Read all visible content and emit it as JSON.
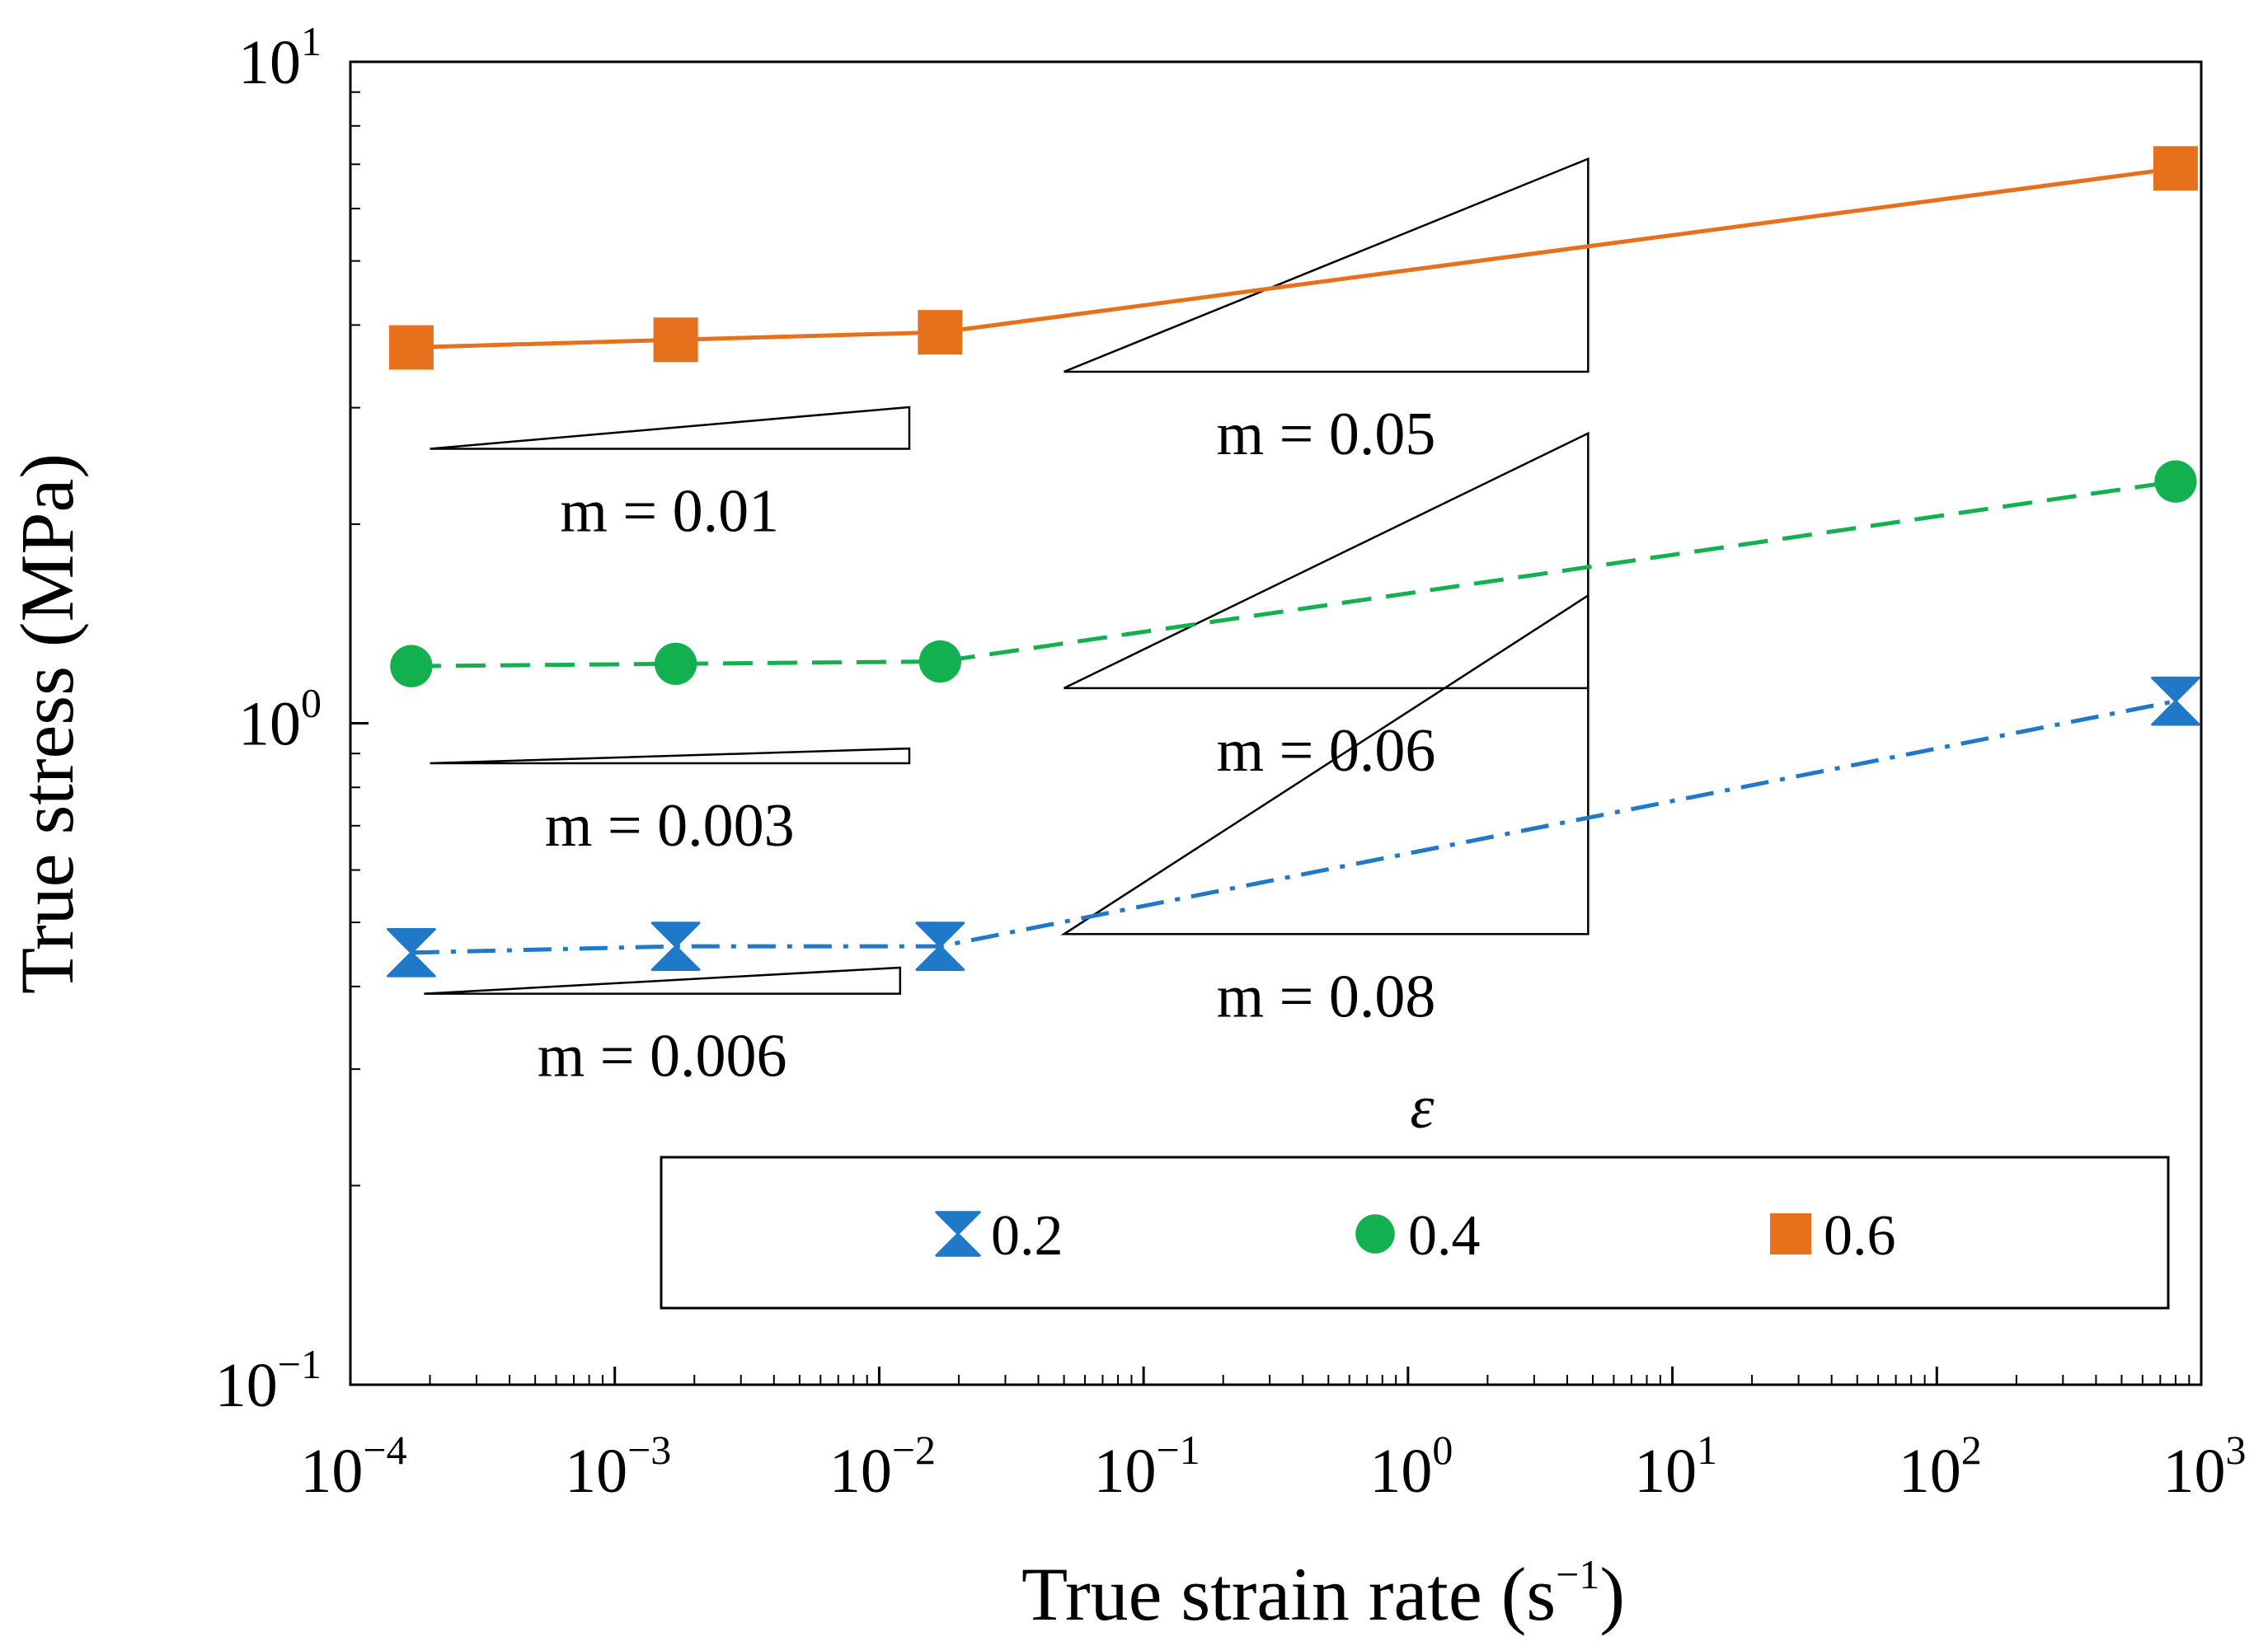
{
  "chart_data": {
    "type": "line",
    "xscale": "log",
    "yscale": "log",
    "xlabel": "True strain rate (s",
    "xlabel_sup": "−1",
    "xlabel_end": ")",
    "ylabel": "True stress (MPa)",
    "xlim": [
      0.0001,
      1000
    ],
    "ylim": [
      0.1,
      10
    ],
    "grid": false,
    "x_ticks": [
      {
        "base": "10",
        "exp": "−4"
      },
      {
        "base": "10",
        "exp": "−3"
      },
      {
        "base": "10",
        "exp": "−2"
      },
      {
        "base": "10",
        "exp": "−1"
      },
      {
        "base": "10",
        "exp": "0"
      },
      {
        "base": "10",
        "exp": "1"
      },
      {
        "base": "10",
        "exp": "2"
      },
      {
        "base": "10",
        "exp": "3"
      }
    ],
    "y_ticks": [
      {
        "base": "10",
        "exp": "−1"
      },
      {
        "base": "10",
        "exp": "0"
      },
      {
        "base": "10",
        "exp": "1"
      }
    ],
    "x": [
      0.00017,
      0.0017,
      0.017,
      800
    ],
    "series": [
      {
        "name": "0.2",
        "values": [
          0.45,
          0.46,
          0.46,
          1.08
        ],
        "color": "#1f78c8",
        "marker": "hourglass",
        "dash": "dashdot"
      },
      {
        "name": "0.4",
        "values": [
          1.22,
          1.23,
          1.24,
          2.32
        ],
        "color": "#13b050",
        "marker": "circle",
        "dash": "dashed"
      },
      {
        "name": "0.6",
        "values": [
          3.7,
          3.8,
          3.9,
          6.9
        ],
        "color": "#e6701c",
        "marker": "square",
        "dash": "solid"
      }
    ],
    "legend": {
      "title": "ε",
      "placement": "bottom-right"
    },
    "annotations": [
      {
        "text": "m = 0.01",
        "x0": 0.0002,
        "x1": 0.013,
        "y0": 2.6,
        "slope": 0.01
      },
      {
        "text": "m = 0.05",
        "x0": 0.05,
        "x1": 4.8,
        "y0": 3.4,
        "slope": 0.05
      },
      {
        "text": "m = 0.003",
        "x0": 0.0002,
        "x1": 0.013,
        "y0": 0.87,
        "slope": 0.003
      },
      {
        "text": "m = 0.06",
        "x0": 0.05,
        "x1": 4.8,
        "y0": 1.13,
        "slope": 0.06
      },
      {
        "text": "m = 0.006",
        "x0": 0.00019,
        "x1": 0.012,
        "y0": 0.39,
        "slope": 0.006
      },
      {
        "text": "m = 0.08",
        "x0": 0.05,
        "x1": 4.8,
        "y0": 0.48,
        "slope": 0.08
      }
    ]
  }
}
